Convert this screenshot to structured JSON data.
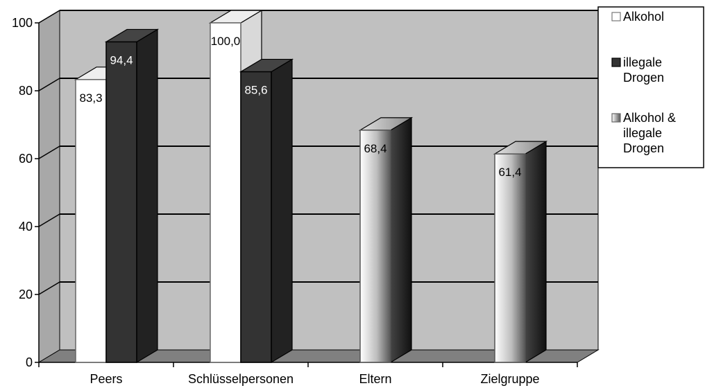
{
  "chart_data": {
    "type": "bar",
    "categories": [
      "Peers",
      "Schlüsselpersonen",
      "Eltern",
      "Zielgruppe"
    ],
    "series": [
      {
        "name": "Alkohol",
        "values": [
          83.3,
          100.0,
          null,
          null
        ],
        "labels": [
          "83,3",
          "100,0",
          "",
          ""
        ],
        "color": "#ffffff"
      },
      {
        "name": "illegale Drogen",
        "values": [
          94.4,
          85.6,
          null,
          null
        ],
        "labels": [
          "94,4",
          "85,6",
          "",
          ""
        ],
        "color": "#333333"
      },
      {
        "name": "Alkohol & illegale Drogen",
        "values": [
          null,
          null,
          68.4,
          61.4
        ],
        "labels": [
          "",
          "",
          "68,4",
          "61,4"
        ],
        "color": "#aaaaaa"
      }
    ],
    "y_ticks": [
      "0",
      "20",
      "40",
      "60",
      "80",
      "100"
    ],
    "ylim": [
      0,
      100
    ],
    "grid": true,
    "legend_position": "top-right",
    "legend_entries": [
      {
        "lines": [
          "Alkohol"
        ]
      },
      {
        "lines": [
          "illegale",
          "Drogen"
        ]
      },
      {
        "lines": [
          "Alkohol &",
          "illegale",
          "Drogen"
        ]
      }
    ],
    "colors": {
      "wall": "#c0c0c0",
      "floor": "#808080",
      "dark_bar": "#333333"
    }
  }
}
